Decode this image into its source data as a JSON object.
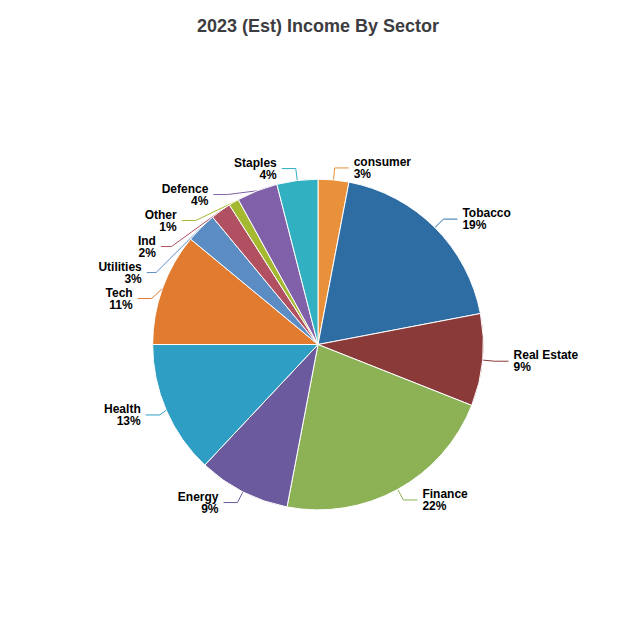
{
  "chart_data": {
    "type": "pie",
    "title": "2023 (Est) Income By Sector",
    "categories": [
      "consumer",
      "Tobacco",
      "Real Estate",
      "Finance",
      "Energy",
      "Health",
      "Tech",
      "Utilities",
      "Ind",
      "Other",
      "Defence",
      "Staples"
    ],
    "values": [
      3,
      19,
      9,
      22,
      9,
      13,
      11,
      3,
      2,
      1,
      4,
      4
    ],
    "value_labels": [
      "3%",
      "19%",
      "9%",
      "22%",
      "9%",
      "13%",
      "11%",
      "3%",
      "2%",
      "1%",
      "4%",
      "4%"
    ],
    "colors": [
      "#E8903A",
      "#2E6DA4",
      "#8B3A3A",
      "#8DB255",
      "#6B5B9E",
      "#2E9EC4",
      "#E07B30",
      "#5B8DC4",
      "#B05060",
      "#A4B830",
      "#8060A8",
      "#30B0C0"
    ],
    "data_labels": true
  }
}
